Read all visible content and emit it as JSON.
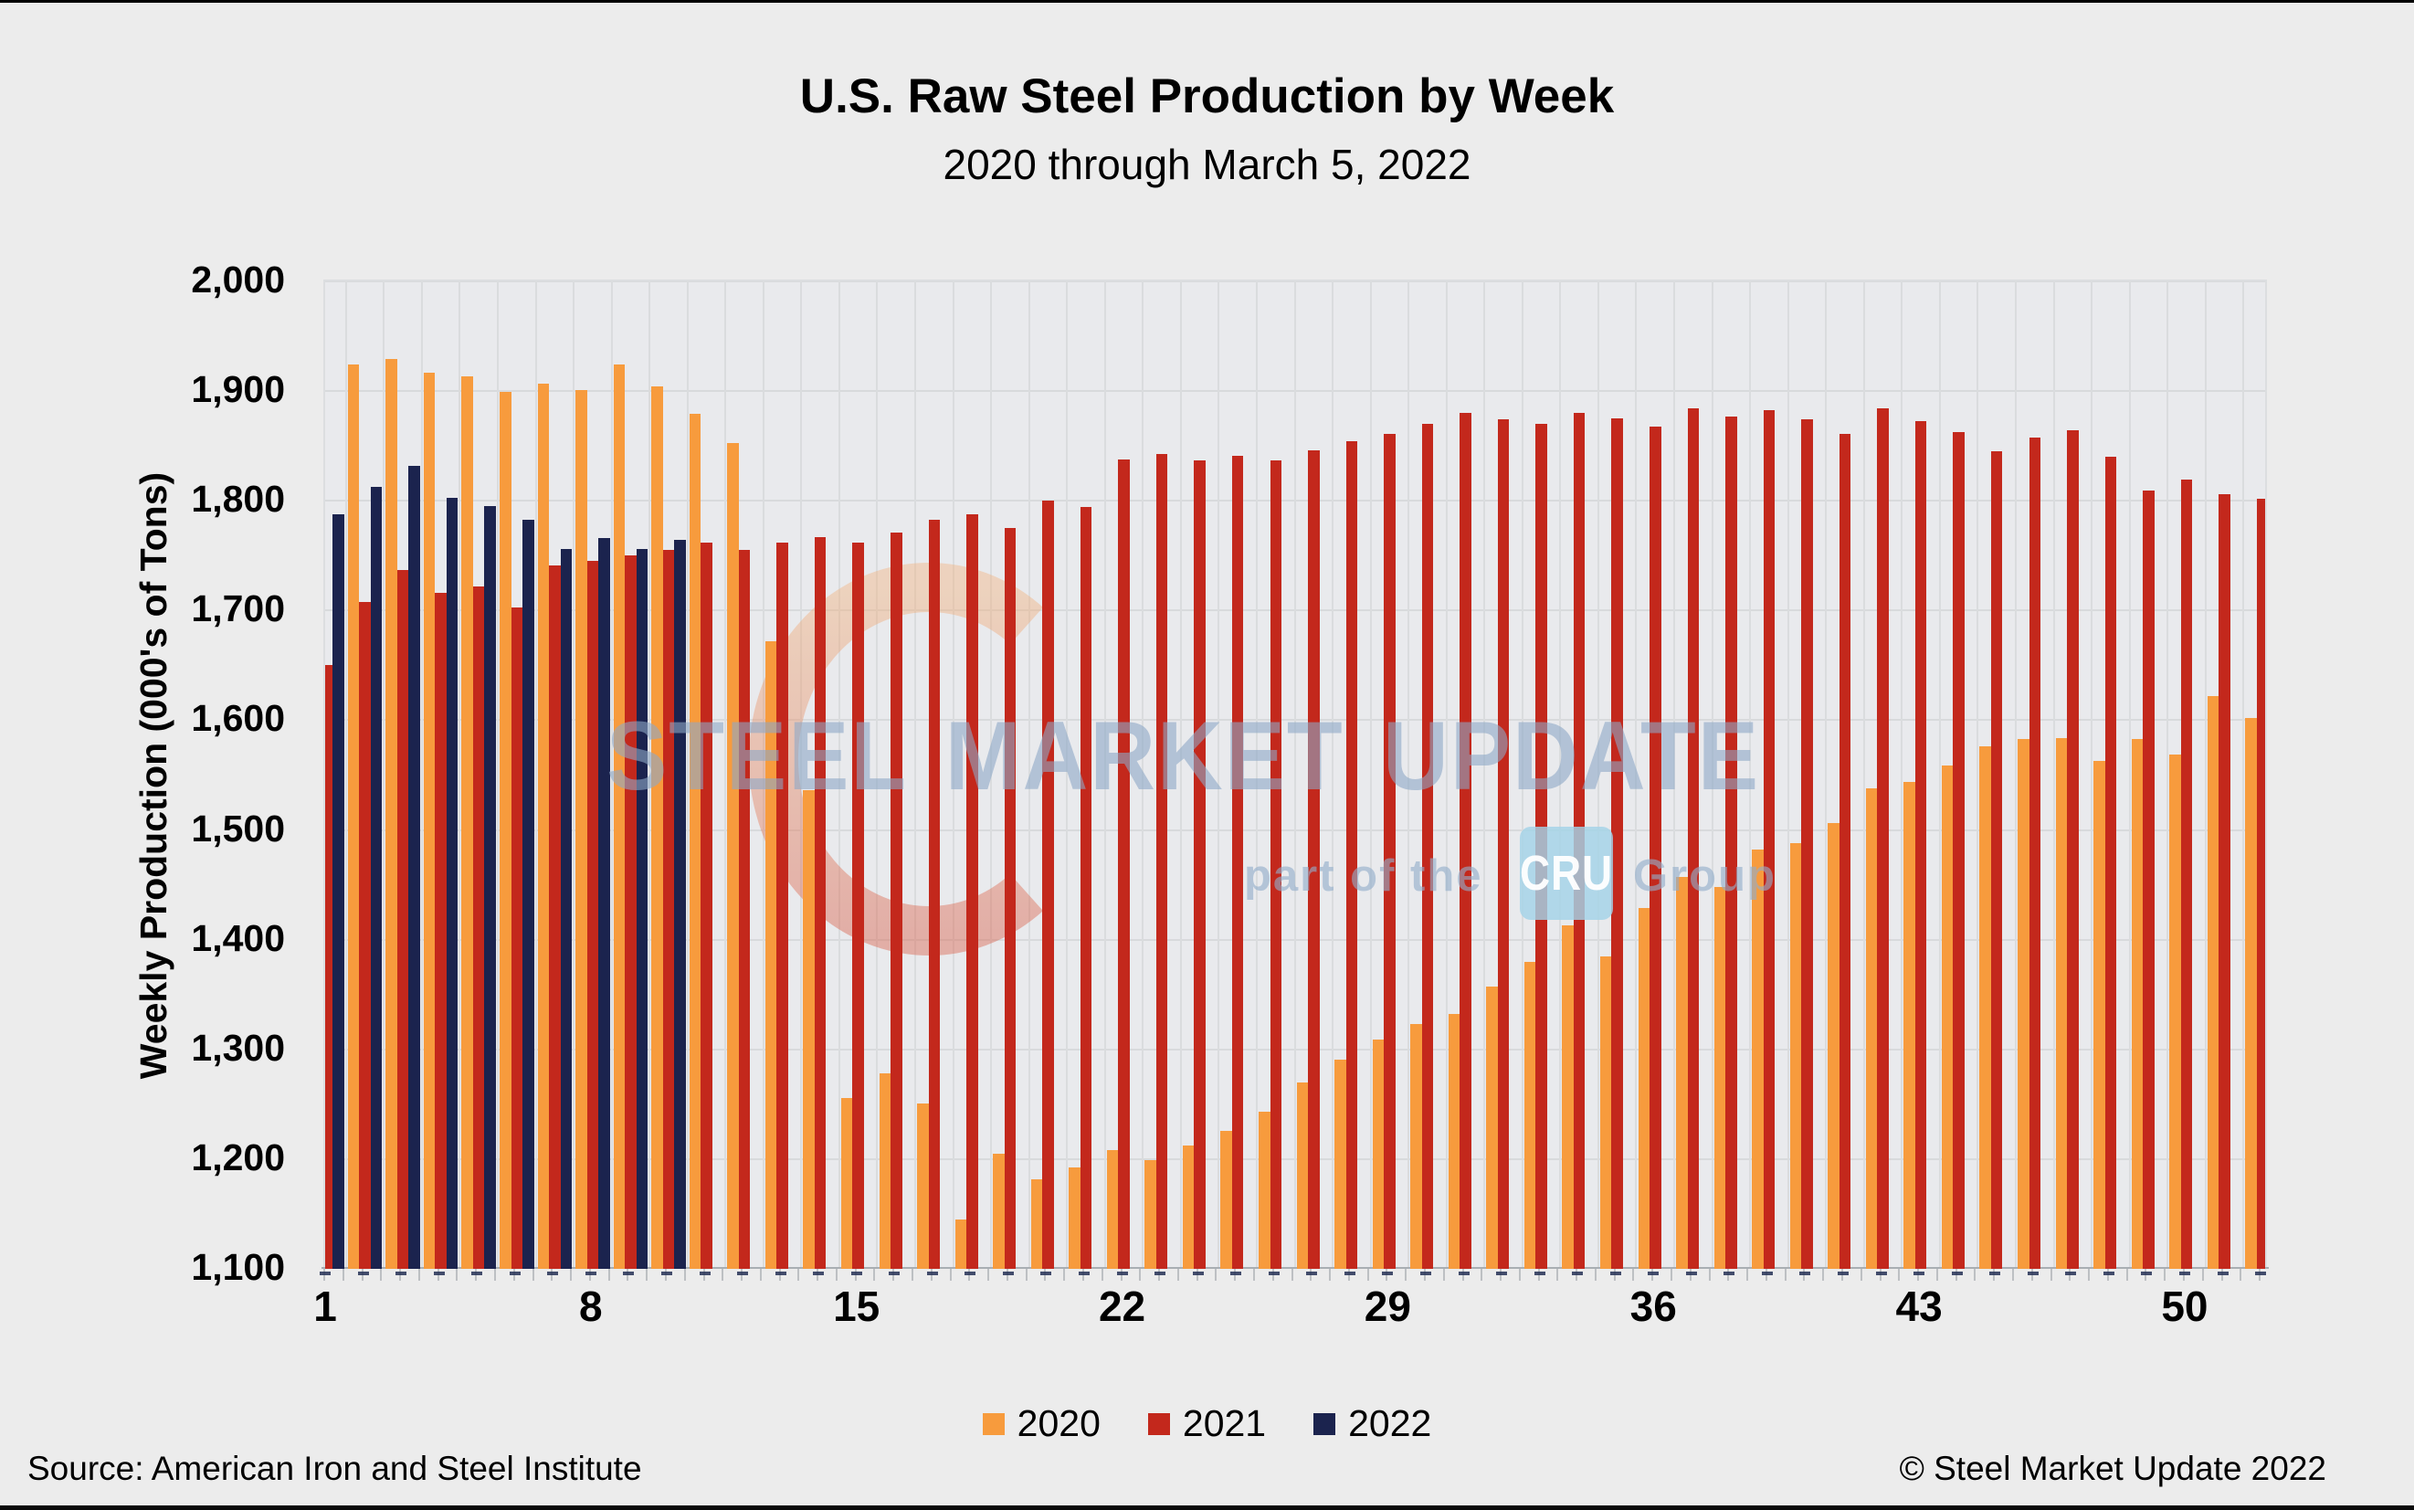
{
  "title": "U.S. Raw Steel Production by Week",
  "subtitle": "2020 through March 5, 2022",
  "y_axis_title": "Weekly Production (000's of Tons)",
  "footer": {
    "source": "Source: American Iron and Steel Institute",
    "copyright": "© Steel Market Update 2022"
  },
  "watermark": {
    "line1": "STEEL MARKET UPDATE",
    "part_of": "part of the",
    "cru": "CRU",
    "group": "Group"
  },
  "colors": {
    "orange_2020": "#F79B3D",
    "red_2021": "#C3281C",
    "navy_2022": "#1B234E",
    "plot_background": "#E9EAED",
    "page_background": "#ECECEC",
    "gridline": "#D8DADC",
    "watermark_blue": "#8FA9C7"
  },
  "chart_data": {
    "type": "bar",
    "title": "U.S. Raw Steel Production by Week",
    "subtitle": "2020 through March 5, 2022",
    "xlabel": "",
    "ylabel": "Weekly Production (000's of Tons)",
    "ylim": [
      1100,
      2000
    ],
    "ytick_step": 100,
    "y_tick_labels": [
      "2,000",
      "1,900",
      "1,800",
      "1,700",
      "1,600",
      "1,500",
      "1,400",
      "1,300",
      "1,200",
      "1,100"
    ],
    "x_ticks": [
      1,
      8,
      15,
      22,
      29,
      36,
      43,
      50
    ],
    "weeks": 52,
    "grid": "both",
    "legend_position": "bottom",
    "series": [
      {
        "name": "2020",
        "color": "#F79B3D",
        "values": [
          null,
          1924,
          1929,
          1917,
          1913,
          1899,
          1907,
          1901,
          1924,
          1904,
          1879,
          1853,
          1672,
          1536,
          1256,
          1278,
          1251,
          1145,
          1205,
          1182,
          1192,
          1208,
          1199,
          1212,
          1226,
          1243,
          1270,
          1291,
          1309,
          1323,
          1332,
          1357,
          1380,
          1413,
          1385,
          1429,
          1457,
          1448,
          1482,
          1488,
          1506,
          1538,
          1544,
          1559,
          1576,
          1583,
          1584,
          1563,
          1583,
          1569,
          1622,
          1602
        ]
      },
      {
        "name": "2021",
        "color": "#C3281C",
        "values": [
          1650,
          1708,
          1737,
          1716,
          1722,
          1703,
          1741,
          1745,
          1750,
          1755,
          1762,
          1755,
          1762,
          1767,
          1762,
          1771,
          1783,
          1788,
          1775,
          1800,
          1794,
          1838,
          1843,
          1837,
          1841,
          1837,
          1846,
          1854,
          1861,
          1870,
          1880,
          1874,
          1870,
          1880,
          1875,
          1868,
          1884,
          1877,
          1883,
          1874,
          1861,
          1884,
          1873,
          1863,
          1845,
          1858,
          1864,
          1840,
          1809,
          1819,
          1806,
          1802
        ]
      },
      {
        "name": "2022",
        "color": "#1B234E",
        "values": [
          1788,
          1813,
          1832,
          1803,
          1795,
          1783,
          1756,
          1766,
          1756,
          1764
        ]
      }
    ]
  }
}
